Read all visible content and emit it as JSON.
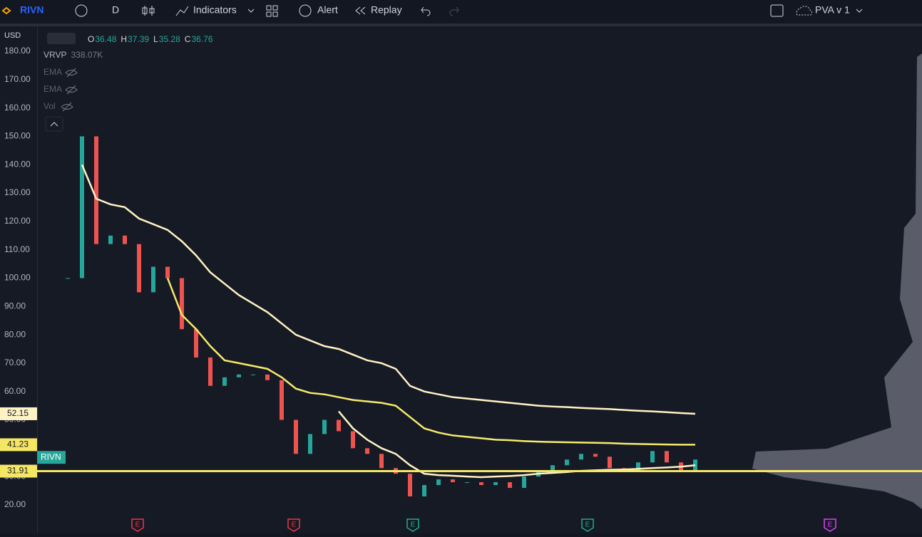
{
  "toolbar": {
    "symbol": "RIVN",
    "interval": "D",
    "indicators": "Indicators",
    "alert": "Alert",
    "replay": "Replay",
    "layout": "PVA v 1"
  },
  "currency": "USD",
  "legend": {
    "ohlc": [
      {
        "label": "O",
        "value": 36.48
      },
      {
        "label": "H",
        "value": 37.39
      },
      {
        "label": "L",
        "value": 35.28
      },
      {
        "label": "C",
        "value": 36.76
      }
    ],
    "indicators": [
      {
        "name": "VRVP",
        "value": "338.07K"
      },
      {
        "name": "EMA"
      },
      {
        "name": "EMA"
      },
      {
        "name": "Vol"
      }
    ]
  },
  "chart": {
    "ylim": [
      9.94,
      188.54
    ],
    "yticks": [
      {
        "value": 20,
        "label": "20.00"
      },
      {
        "value": 30,
        "label": "30.00"
      },
      {
        "value": 40,
        "label": "40.00"
      },
      {
        "value": 50,
        "label": "50.00"
      },
      {
        "value": 60,
        "label": "60.00"
      },
      {
        "value": 70,
        "label": "70.00"
      },
      {
        "value": 80,
        "label": "80.00"
      },
      {
        "value": 90,
        "label": "90.00"
      },
      {
        "value": 100,
        "label": "100.00"
      },
      {
        "value": 110,
        "label": "110.00"
      },
      {
        "value": 120,
        "label": "120.00"
      },
      {
        "value": 130,
        "label": "130.00"
      },
      {
        "value": 140,
        "label": "140.00"
      },
      {
        "value": 150,
        "label": "150.00"
      },
      {
        "value": 160,
        "label": "160.00"
      },
      {
        "value": 170,
        "label": "170.00"
      },
      {
        "value": 180,
        "label": "180.00"
      }
    ],
    "close": [
      100,
      150,
      112,
      115,
      112,
      95,
      104,
      100,
      82,
      72,
      62,
      65,
      66,
      66,
      64,
      50,
      38,
      45,
      50,
      46,
      40,
      38,
      33,
      31,
      23,
      27,
      29,
      28,
      28,
      27,
      28,
      26,
      30,
      32,
      34,
      36,
      38,
      37,
      33,
      32,
      35,
      39,
      35,
      32,
      36
    ],
    "lines": [
      {
        "color": "#fff3c4",
        "values": [
          null,
          140,
          128,
          126,
          125,
          121,
          119,
          117,
          113,
          108,
          102,
          98,
          94,
          91,
          88,
          84,
          80,
          78,
          76,
          75,
          73,
          71,
          70,
          68,
          62,
          60,
          59,
          58,
          57.5,
          57,
          56.5,
          56,
          55.5,
          55,
          54.7,
          54.5,
          54.2,
          54,
          53.8,
          53.5,
          53.2,
          53,
          52.7,
          52.4,
          52.15
        ]
      },
      {
        "color": "#f7e96b",
        "values": [
          null,
          null,
          null,
          null,
          null,
          null,
          null,
          100,
          87,
          82,
          76,
          71,
          70,
          69,
          68,
          65,
          61,
          59.5,
          59,
          58,
          57,
          56.5,
          56,
          55,
          51,
          47,
          45.5,
          44.5,
          44,
          43.5,
          43,
          42.8,
          42.5,
          42.3,
          42.2,
          42.1,
          42,
          41.9,
          41.8,
          41.6,
          41.5,
          41.4,
          41.3,
          41.25,
          41.23
        ]
      },
      {
        "color": "#fff3c4",
        "values": [
          null,
          null,
          null,
          null,
          null,
          null,
          null,
          null,
          null,
          null,
          null,
          null,
          null,
          null,
          null,
          null,
          null,
          null,
          null,
          53,
          47,
          43,
          40,
          38,
          34,
          31,
          30.5,
          30.3,
          30,
          29.8,
          30,
          30.2,
          30.5,
          31,
          31.3,
          31.6,
          32,
          32.2,
          32.4,
          32.5,
          32.7,
          33,
          33.2,
          33.5,
          34
        ]
      }
    ],
    "price_tags": [
      {
        "value": 52.15,
        "color": "#fff3c4"
      },
      {
        "value": 41.23,
        "color": "#f5e663"
      },
      {
        "value": 31.91,
        "color": "#f5e663"
      }
    ],
    "symbol_tag": "RIVN",
    "earnings": [
      {
        "label": "E",
        "color": "#f23645"
      },
      {
        "label": "E",
        "color": "#f23645"
      },
      {
        "label": "E",
        "color": "#22ab94"
      },
      {
        "label": "E",
        "color": "#22ab94"
      },
      {
        "label": "E",
        "color": "#e040fb"
      }
    ]
  }
}
